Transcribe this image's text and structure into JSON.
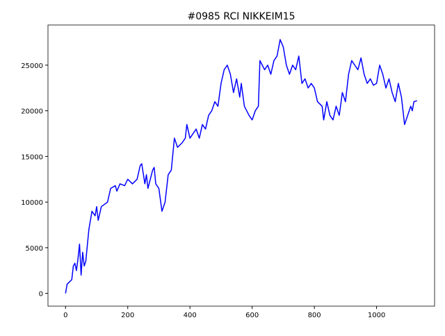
{
  "chart_data": {
    "type": "line",
    "title": "#0985 RCI NIKKEIM15",
    "x": [
      0,
      5,
      20,
      25,
      30,
      35,
      40,
      45,
      50,
      55,
      60,
      65,
      75,
      85,
      95,
      100,
      105,
      115,
      135,
      145,
      160,
      165,
      175,
      190,
      200,
      215,
      230,
      240,
      245,
      255,
      260,
      265,
      280,
      285,
      290,
      300,
      310,
      320,
      330,
      340,
      350,
      360,
      375,
      385,
      390,
      400,
      410,
      420,
      430,
      440,
      450,
      460,
      470,
      480,
      490,
      500,
      510,
      520,
      530,
      540,
      550,
      560,
      565,
      575,
      590,
      600,
      610,
      620,
      625,
      640,
      650,
      660,
      670,
      680,
      690,
      700,
      710,
      720,
      730,
      740,
      750,
      760,
      770,
      780,
      790,
      800,
      810,
      825,
      830,
      840,
      850,
      860,
      870,
      880,
      890,
      900,
      910,
      920,
      930,
      940,
      950,
      960,
      970,
      980,
      990,
      1000,
      1010,
      1020,
      1030,
      1040,
      1050,
      1060,
      1070,
      1080,
      1090,
      1100,
      1110,
      1115,
      1120,
      1130
    ],
    "series": [
      {
        "color": "#0000ff",
        "values": [
          0,
          1000,
          1500,
          3000,
          3300,
          2500,
          3800,
          5400,
          2000,
          4500,
          3000,
          3500,
          7000,
          9000,
          8500,
          9500,
          8000,
          9500,
          10000,
          11500,
          11800,
          11200,
          12000,
          11800,
          12500,
          12000,
          12500,
          14000,
          14200,
          12000,
          13000,
          11500,
          13500,
          13800,
          12000,
          11500,
          9000,
          10000,
          13000,
          13500,
          17000,
          16000,
          16500,
          17000,
          18500,
          17000,
          17500,
          18000,
          17000,
          18500,
          18000,
          19500,
          20000,
          21000,
          20500,
          23000,
          24500,
          25000,
          24000,
          22000,
          23500,
          21500,
          23000,
          20500,
          19500,
          19000,
          20000,
          20500,
          25500,
          24500,
          25000,
          24000,
          25500,
          26000,
          27800,
          27000,
          25000,
          24000,
          25000,
          24500,
          26000,
          23000,
          23500,
          22500,
          23000,
          22500,
          21000,
          20500,
          19000,
          21000,
          19500,
          19000,
          20500,
          19500,
          22000,
          21000,
          24000,
          25500,
          25000,
          24500,
          25800,
          24000,
          23000,
          23500,
          22800,
          23000,
          25000,
          24000,
          22500,
          23500,
          22000,
          21000,
          23000,
          21500,
          18500,
          19500,
          20500,
          20000,
          21000,
          21100
        ]
      }
    ],
    "xlim": [
      -56.5,
      1186.5
    ],
    "ylim": [
      -1400,
      29400
    ],
    "xticks": [
      0,
      200,
      400,
      600,
      800,
      1000
    ],
    "yticks": [
      0,
      5000,
      10000,
      15000,
      20000,
      25000
    ],
    "grid": false
  }
}
